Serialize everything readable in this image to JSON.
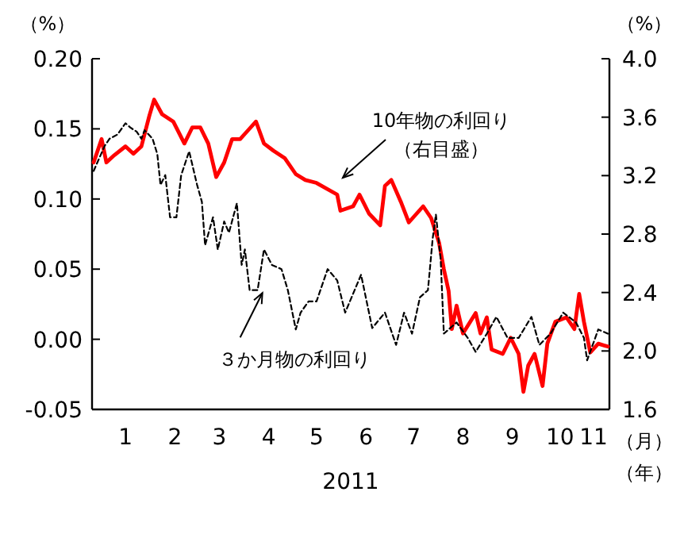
{
  "chart_data": {
    "type": "line",
    "xlabel": "2011",
    "ylabel": "（%）",
    "y2label": "（%）",
    "xlim": [
      "2010-12-11",
      "2011-11-01"
    ],
    "xticks": [
      {
        "value": "2011-01-01",
        "label": "1"
      },
      {
        "value": "2011-02-01",
        "label": "2"
      },
      {
        "value": "2011-03-01",
        "label": "3"
      },
      {
        "value": "2011-04-01",
        "label": "4"
      },
      {
        "value": "2011-05-01",
        "label": "5"
      },
      {
        "value": "2011-06-01",
        "label": "6"
      },
      {
        "value": "2011-07-01",
        "label": "7"
      },
      {
        "value": "2011-08-01",
        "label": "8"
      },
      {
        "value": "2011-09-01",
        "label": "9"
      },
      {
        "value": "2011-10-01",
        "label": "10"
      },
      {
        "value": "2011-11-01",
        "label": "11"
      }
    ],
    "ylim": [
      -0.05,
      0.2
    ],
    "yticks": [
      {
        "value": -0.05,
        "label": "-0.05"
      },
      {
        "value": 0,
        "label": "0.00"
      },
      0.05,
      {
        "value": 0.1,
        "label": "0.10"
      },
      0.15,
      {
        "value": 0.2,
        "label": "0.20"
      }
    ],
    "y2lim": [
      1.6,
      4.0
    ],
    "y2ticks": [
      1.6,
      {
        "value": 2,
        "label": "2.0"
      },
      2.4,
      2.8,
      3.2,
      3.6,
      {
        "value": 4,
        "label": "4.0"
      }
    ],
    "series": [
      {
        "axis": "y2",
        "color": "#ff0000",
        "line_style": "solid",
        "x": [
          "2010-12-12",
          "2010-12-17",
          "2010-12-20",
          "2010-12-25",
          "2011-01-01",
          "2011-01-06",
          "2011-01-11",
          "2011-01-16",
          "2011-01-19",
          "2011-01-24",
          "2011-01-31",
          "2011-02-07",
          "2011-02-12",
          "2011-02-17",
          "2011-02-22",
          "2011-02-27",
          "2011-03-04",
          "2011-03-09",
          "2011-03-14",
          "2011-03-19",
          "2011-03-24",
          "2011-03-29",
          "2011-04-04",
          "2011-04-11",
          "2011-04-18",
          "2011-04-24",
          "2011-05-01",
          "2011-05-14",
          "2011-05-16",
          "2011-05-24",
          "2011-05-28",
          "2011-06-03",
          "2011-06-10",
          "2011-06-13",
          "2011-06-17",
          "2011-06-23",
          "2011-06-28",
          "2011-07-07",
          "2011-07-12",
          "2011-07-17",
          "2011-07-20",
          "2011-07-23",
          "2011-07-25",
          "2011-07-28",
          "2011-08-01",
          "2011-08-09",
          "2011-08-12",
          "2011-08-16",
          "2011-08-19",
          "2011-08-26",
          "2011-08-31",
          "2011-09-05",
          "2011-09-08",
          "2011-09-11",
          "2011-09-15",
          "2011-09-20",
          "2011-09-23",
          "2011-09-28",
          "2011-10-05",
          "2011-10-10",
          "2011-10-13",
          "2011-10-16",
          "2011-10-20",
          "2011-10-25",
          "2011-10-31"
        ],
        "values": [
          3.29,
          3.45,
          3.29,
          3.34,
          3.4,
          3.35,
          3.4,
          3.61,
          3.72,
          3.62,
          3.57,
          3.42,
          3.53,
          3.53,
          3.42,
          3.19,
          3.29,
          3.45,
          3.45,
          3.51,
          3.57,
          3.42,
          3.37,
          3.32,
          3.21,
          3.17,
          3.15,
          3.07,
          2.96,
          2.99,
          3.07,
          2.94,
          2.86,
          3.13,
          3.17,
          3.02,
          2.88,
          2.99,
          2.91,
          2.74,
          2.56,
          2.41,
          2.15,
          2.31,
          2.12,
          2.26,
          2.12,
          2.23,
          2.01,
          1.98,
          2.09,
          1.98,
          1.72,
          1.9,
          1.98,
          1.76,
          2.05,
          2.2,
          2.23,
          2.15,
          2.39,
          2.2,
          1.99,
          2.05,
          2.03
        ]
      },
      {
        "color": "#000000",
        "line_style": "dashed",
        "x": [
          "2010-12-12",
          "2010-12-19",
          "2010-12-22",
          "2010-12-27",
          "2011-01-01",
          "2011-01-04",
          "2011-01-08",
          "2011-01-11",
          "2011-01-13",
          "2011-01-18",
          "2011-01-21",
          "2011-01-23",
          "2011-01-26",
          "2011-01-29",
          "2011-02-02",
          "2011-02-05",
          "2011-02-10",
          "2011-02-15",
          "2011-02-18",
          "2011-02-20",
          "2011-02-25",
          "2011-02-28",
          "2011-03-04",
          "2011-03-07",
          "2011-03-12",
          "2011-03-15",
          "2011-03-17",
          "2011-03-20",
          "2011-03-25",
          "2011-03-29",
          "2011-04-03",
          "2011-04-09",
          "2011-04-13",
          "2011-04-18",
          "2011-04-21",
          "2011-04-26",
          "2011-05-01",
          "2011-05-08",
          "2011-05-14",
          "2011-05-19",
          "2011-05-29",
          "2011-06-05",
          "2011-06-13",
          "2011-06-20",
          "2011-06-25",
          "2011-06-30",
          "2011-07-05",
          "2011-07-10",
          "2011-07-13",
          "2011-07-15",
          "2011-07-18",
          "2011-07-20",
          "2011-07-28",
          "2011-08-04",
          "2011-08-09",
          "2011-08-16",
          "2011-08-22",
          "2011-08-29",
          "2011-09-05",
          "2011-09-13",
          "2011-09-18",
          "2011-09-25",
          "2011-10-03",
          "2011-10-11",
          "2011-10-16",
          "2011-10-18",
          "2011-10-25",
          "2011-10-31"
        ],
        "values": [
          0.12,
          0.138,
          0.143,
          0.146,
          0.154,
          0.151,
          0.148,
          0.143,
          0.149,
          0.143,
          0.132,
          0.11,
          0.117,
          0.087,
          0.087,
          0.117,
          0.134,
          0.11,
          0.098,
          0.067,
          0.087,
          0.064,
          0.084,
          0.076,
          0.097,
          0.053,
          0.064,
          0.035,
          0.035,
          0.064,
          0.053,
          0.05,
          0.035,
          0.007,
          0.019,
          0.027,
          0.027,
          0.05,
          0.042,
          0.019,
          0.046,
          0.008,
          0.019,
          -0.004,
          0.019,
          0.004,
          0.03,
          0.035,
          0.072,
          0.089,
          0.057,
          0.004,
          0.012,
          0.001,
          -0.009,
          0.004,
          0.016,
          0.001,
          0.001,
          0.016,
          -0.004,
          0.004,
          0.019,
          0.012,
          0.001,
          -0.015,
          0.007,
          0.004
        ]
      }
    ],
    "annotations": [
      "10年物の利回り",
      "（右目盛）",
      {
        "text": "３か月物の利回り",
        "x": "2011-03-28",
        "y": 0.033
      },
      "（月）",
      "（年）"
    ]
  }
}
